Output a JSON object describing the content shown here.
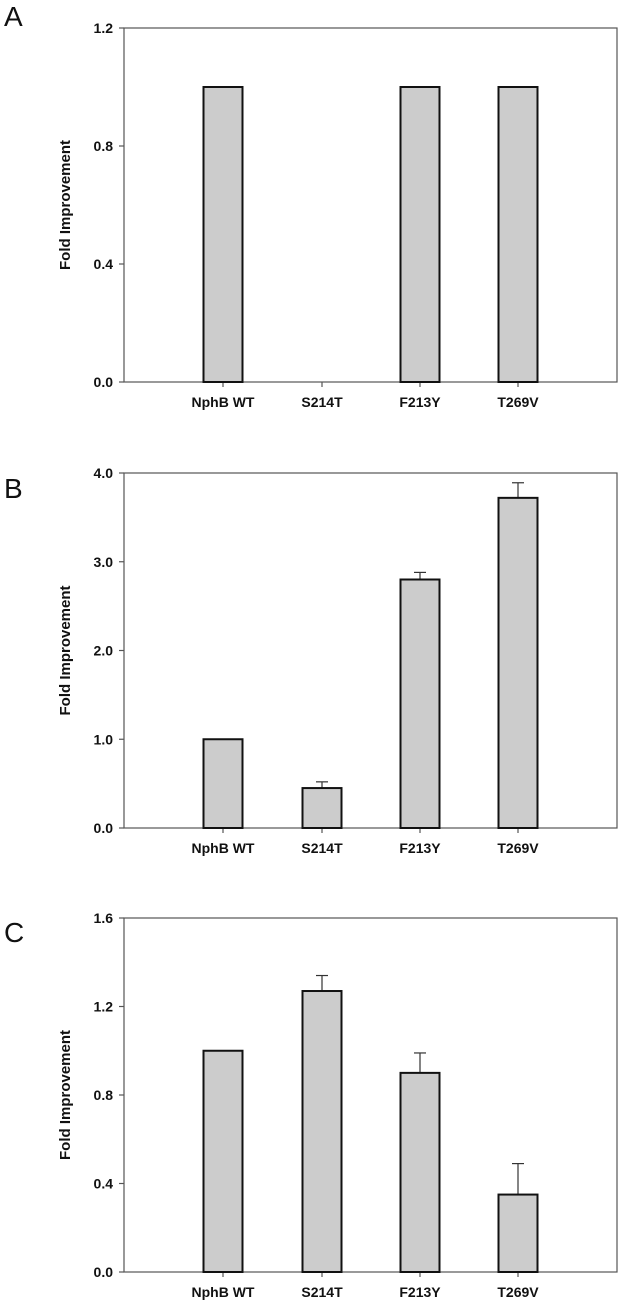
{
  "chart_data": [
    {
      "type": "bar",
      "panel_label": "A",
      "ylabel": "Fold Improvement",
      "categories": [
        "NphB WT",
        "S214T",
        "F213Y",
        "T269V"
      ],
      "values": [
        1.0,
        0.0,
        1.0,
        1.0
      ],
      "error_upper": [
        null,
        null,
        null,
        null
      ],
      "ylim": [
        0,
        1.2
      ],
      "yticks": [
        "0.0",
        "0.4",
        "0.8",
        "1.2"
      ],
      "grid": false,
      "bar_color": "#cccccc"
    },
    {
      "type": "bar",
      "panel_label": "B",
      "ylabel": "Fold Improvement",
      "categories": [
        "NphB WT",
        "S214T",
        "F213Y",
        "T269V"
      ],
      "values": [
        1.0,
        0.45,
        2.8,
        3.72
      ],
      "error_upper": [
        null,
        0.52,
        2.88,
        3.89
      ],
      "ylim": [
        0,
        4.0
      ],
      "yticks": [
        "0.0",
        "1.0",
        "2.0",
        "3.0",
        "4.0"
      ],
      "grid": false,
      "bar_color": "#cccccc"
    },
    {
      "type": "bar",
      "panel_label": "C",
      "ylabel": "Fold Improvement",
      "categories": [
        "NphB WT",
        "S214T",
        "F213Y",
        "T269V"
      ],
      "values": [
        1.0,
        1.27,
        0.9,
        0.35
      ],
      "error_upper": [
        null,
        1.34,
        0.99,
        0.49
      ],
      "ylim": [
        0,
        1.6
      ],
      "yticks": [
        "0.0",
        "0.4",
        "0.8",
        "1.2",
        "1.6"
      ],
      "grid": false,
      "bar_color": "#cccccc"
    }
  ]
}
